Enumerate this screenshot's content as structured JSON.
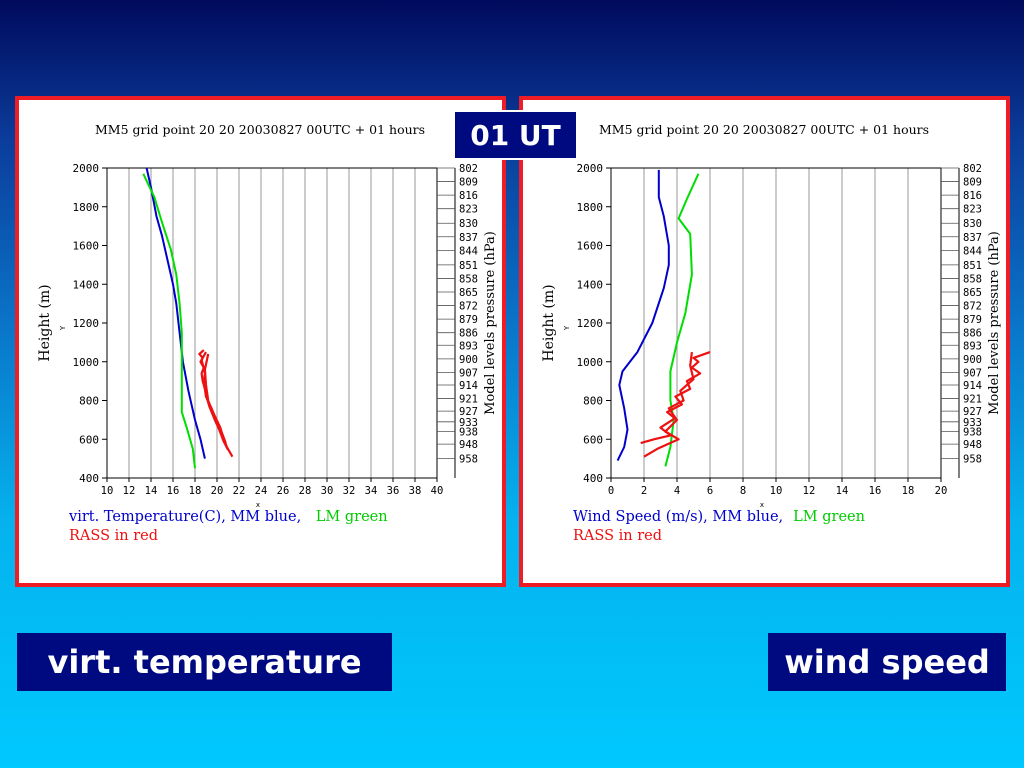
{
  "slide": {
    "time_label": "01 UT",
    "left_label": "virt. temperature",
    "right_label": "wind speed"
  },
  "chart_data": [
    {
      "type": "line",
      "title": "MM5 grid point  20 20  20030827 00UTC + 01 hours",
      "xlabel": "x",
      "ylabel": "Height (m)",
      "ylabel_small": "Y",
      "right_axis_label": "Model levels pressure (hPa)",
      "xlim": [
        10,
        40
      ],
      "ylim": [
        400,
        2000
      ],
      "x_ticks": [
        "10",
        "12",
        "14",
        "16",
        "18",
        "20",
        "22",
        "24",
        "26",
        "28",
        "30",
        "32",
        "34",
        "36",
        "38",
        "40"
      ],
      "y_ticks": [
        "2000",
        "1800",
        "1600",
        "1400",
        "1200",
        "1000",
        "800",
        "600",
        "400"
      ],
      "pressure_levels": [
        "802",
        "809",
        "816",
        "823",
        "830",
        "837",
        "844",
        "851",
        "858",
        "865",
        "872",
        "879",
        "886",
        "893",
        "900",
        "907",
        "914",
        "921",
        "927",
        "933",
        "938",
        "948",
        "958"
      ],
      "pressure_heights": [
        2000,
        1930,
        1860,
        1790,
        1715,
        1645,
        1575,
        1500,
        1430,
        1360,
        1290,
        1220,
        1150,
        1085,
        1015,
        945,
        880,
        810,
        745,
        690,
        640,
        575,
        500
      ],
      "caption_line1": [
        "virt. Temperature(C), MM blue,",
        " LM green"
      ],
      "caption_line2": "RASS in red",
      "series": [
        {
          "name": "MM",
          "color": "#0000cc",
          "x": [
            18.9,
            18.5,
            18.0,
            17.4,
            16.9,
            16.6,
            16.3,
            16.0,
            15.6,
            15.0,
            14.5,
            14.0,
            13.6
          ],
          "y": [
            500,
            600,
            700,
            850,
            1000,
            1150,
            1300,
            1400,
            1500,
            1650,
            1750,
            1900,
            2000
          ]
        },
        {
          "name": "LM",
          "color": "#00dd00",
          "x": [
            18.0,
            17.8,
            17.3,
            16.8,
            16.8,
            16.8,
            16.6,
            16.3,
            15.8,
            15.0,
            14.3,
            13.3
          ],
          "y": [
            450,
            550,
            650,
            740,
            900,
            1150,
            1300,
            1450,
            1580,
            1720,
            1850,
            1970
          ]
        },
        {
          "name": "RASS",
          "color": "#ee1111",
          "x": [
            21.4,
            20.9,
            20.5,
            20.3,
            19.8,
            19.5,
            19.0,
            18.9,
            18.7,
            18.6,
            18.8,
            18.5,
            18.7,
            18.4,
            18.8
          ],
          "y": [
            510,
            560,
            620,
            660,
            720,
            760,
            820,
            860,
            900,
            940,
            970,
            1000,
            1020,
            1040,
            1060
          ]
        },
        {
          "name": "RASS",
          "color": "#ee1111",
          "x": [
            21.0,
            20.6,
            20.2,
            19.8,
            19.3,
            19.0,
            18.8,
            18.9,
            18.6,
            19.0
          ],
          "y": [
            545,
            590,
            650,
            700,
            770,
            830,
            890,
            940,
            1010,
            1050
          ]
        },
        {
          "name": "RASS",
          "color": "#ee1111",
          "x": [
            20.8,
            20.4,
            20.0,
            19.6,
            19.2,
            19.0,
            18.9,
            19.2
          ],
          "y": [
            580,
            640,
            690,
            740,
            800,
            880,
            960,
            1040
          ]
        }
      ]
    },
    {
      "type": "line",
      "title": "MM5 grid point  20 20  20030827 00UTC + 01 hours",
      "xlabel": "x",
      "ylabel": "Height (m)",
      "ylabel_small": "Y",
      "right_axis_label": "Model levels pressure (hPa)",
      "xlim": [
        0,
        20
      ],
      "ylim": [
        400,
        2000
      ],
      "x_ticks": [
        "0",
        "2",
        "4",
        "6",
        "8",
        "10",
        "12",
        "14",
        "16",
        "18",
        "20"
      ],
      "y_ticks": [
        "2000",
        "1800",
        "1600",
        "1400",
        "1200",
        "1000",
        "800",
        "600",
        "400"
      ],
      "pressure_levels": [
        "802",
        "809",
        "816",
        "823",
        "830",
        "837",
        "844",
        "851",
        "858",
        "865",
        "872",
        "879",
        "886",
        "893",
        "900",
        "907",
        "914",
        "921",
        "927",
        "933",
        "938",
        "948",
        "958"
      ],
      "pressure_heights": [
        2000,
        1930,
        1860,
        1790,
        1715,
        1645,
        1575,
        1500,
        1430,
        1360,
        1290,
        1220,
        1150,
        1085,
        1015,
        945,
        880,
        810,
        745,
        690,
        640,
        575,
        500
      ],
      "caption_line1": [
        "Wind Speed (m/s), MM blue,",
        "LM green"
      ],
      "caption_line2": "RASS in red",
      "series": [
        {
          "name": "MM",
          "color": "#0000cc",
          "x": [
            0.4,
            0.8,
            1.0,
            0.8,
            0.5,
            0.7,
            1.6,
            2.5,
            3.2,
            3.5,
            3.5,
            3.2,
            2.9,
            2.9
          ],
          "y": [
            490,
            560,
            650,
            760,
            880,
            950,
            1050,
            1200,
            1380,
            1500,
            1600,
            1750,
            1850,
            1990
          ]
        },
        {
          "name": "LM",
          "color": "#00dd00",
          "x": [
            3.3,
            3.6,
            3.8,
            3.6,
            3.6,
            4.0,
            4.5,
            4.9,
            4.8,
            4.1,
            4.6,
            5.3
          ],
          "y": [
            460,
            560,
            700,
            800,
            950,
            1100,
            1250,
            1450,
            1660,
            1740,
            1840,
            1970
          ]
        },
        {
          "name": "RASS",
          "color": "#ee1111",
          "x": [
            2.0,
            2.8,
            4.1,
            3.3,
            4.0,
            3.4,
            4.3,
            3.9,
            4.8,
            4.6,
            5.4,
            4.9,
            5.3,
            5.0,
            6.0
          ],
          "y": [
            510,
            550,
            600,
            640,
            700,
            740,
            780,
            820,
            860,
            900,
            940,
            970,
            1000,
            1020,
            1050
          ]
        },
        {
          "name": "RASS",
          "color": "#ee1111",
          "x": [
            1.8,
            2.6,
            3.6,
            3.0,
            3.9,
            3.5,
            4.4,
            4.2,
            5.0,
            4.8,
            4.9
          ],
          "y": [
            580,
            600,
            620,
            660,
            710,
            760,
            800,
            850,
            910,
            980,
            1050
          ]
        }
      ]
    }
  ]
}
